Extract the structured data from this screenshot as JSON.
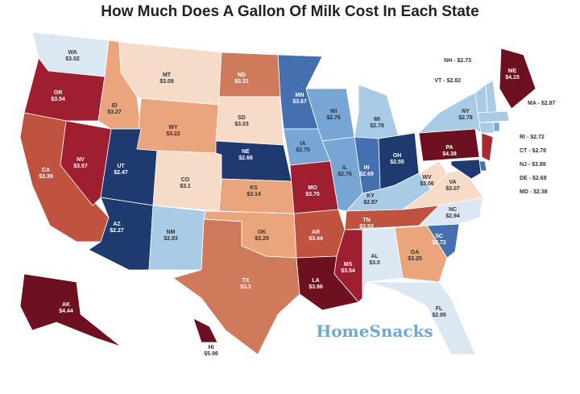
{
  "title": "How Much Does A Gallon Of Milk Cost In Each State",
  "watermark": "HomeSnacks",
  "states": [
    {
      "abbr": "WA",
      "price": "$3.02",
      "color": "#dbe8f3"
    },
    {
      "abbr": "OR",
      "price": "$3.54",
      "color": "#9f1f30"
    },
    {
      "abbr": "CA",
      "price": "$3.39",
      "color": "#c0533f"
    },
    {
      "abbr": "NV",
      "price": "$3.57",
      "color": "#9f1f30"
    },
    {
      "abbr": "ID",
      "price": "$3.27",
      "color": "#eaa57c"
    },
    {
      "abbr": "MT",
      "price": "$3.09",
      "color": "#f6dcc8"
    },
    {
      "abbr": "WY",
      "price": "$3.22",
      "color": "#eaa57c"
    },
    {
      "abbr": "UT",
      "price": "$2.47",
      "color": "#1e3a6e"
    },
    {
      "abbr": "AZ",
      "price": "$2.27",
      "color": "#1e3a6e"
    },
    {
      "abbr": "CO",
      "price": "$3.1",
      "color": "#f6dcc8"
    },
    {
      "abbr": "NM",
      "price": "$2.83",
      "color": "#a9cbe5"
    },
    {
      "abbr": "ND",
      "price": "$3.31",
      "color": "#d07a5c"
    },
    {
      "abbr": "SD",
      "price": "$3.03",
      "color": "#f6dcc8"
    },
    {
      "abbr": "NE",
      "price": "$2.66",
      "color": "#1e3a6e"
    },
    {
      "abbr": "KS",
      "price": "$3.14",
      "color": "#eaa57c"
    },
    {
      "abbr": "OK",
      "price": "$3.29",
      "color": "#eaa57c"
    },
    {
      "abbr": "TX",
      "price": "$3.3",
      "color": "#d07a5c"
    },
    {
      "abbr": "MN",
      "price": "$3.67",
      "color": "#4470b0"
    },
    {
      "abbr": "IA",
      "price": "$2.75",
      "color": "#77a6d4"
    },
    {
      "abbr": "MO",
      "price": "$3.70",
      "color": "#9f1f30"
    },
    {
      "abbr": "AR",
      "price": "$3.44",
      "color": "#c0533f"
    },
    {
      "abbr": "LA",
      "price": "$3.96",
      "color": "#6d1020"
    },
    {
      "abbr": "WI",
      "price": "$2.76",
      "color": "#77a6d4"
    },
    {
      "abbr": "IL",
      "price": "$2.76",
      "color": "#77a6d4"
    },
    {
      "abbr": "MI",
      "price": "$2.78",
      "color": "#a9cbe5"
    },
    {
      "abbr": "IN",
      "price": "$2.69",
      "color": "#4470b0"
    },
    {
      "abbr": "OH",
      "price": "$2.55",
      "color": "#1e3a6e"
    },
    {
      "abbr": "KY",
      "price": "$2.87",
      "color": "#a9cbe5"
    },
    {
      "abbr": "TN",
      "price": "$3.53",
      "color": "#c0533f"
    },
    {
      "abbr": "MS",
      "price": "$3.54",
      "color": "#9f1f30"
    },
    {
      "abbr": "AL",
      "price": "$3.0",
      "color": "#dbe8f3"
    },
    {
      "abbr": "GA",
      "price": "$3.25",
      "color": "#eaa57c"
    },
    {
      "abbr": "FL",
      "price": "$2.95",
      "color": "#dbe8f3"
    },
    {
      "abbr": "SC",
      "price": "$2.72",
      "color": "#4470b0"
    },
    {
      "abbr": "NC",
      "price": "$2.94",
      "color": "#dbe8f3"
    },
    {
      "abbr": "VA",
      "price": "$3.07",
      "color": "#f6dcc8"
    },
    {
      "abbr": "WV",
      "price": "$3.06",
      "color": "#f6dcc8"
    },
    {
      "abbr": "PA",
      "price": "$4.38",
      "color": "#6d1020"
    },
    {
      "abbr": "NY",
      "price": "$2.78",
      "color": "#a9cbe5"
    },
    {
      "abbr": "ME",
      "price": "$4.15",
      "color": "#6d1020"
    },
    {
      "abbr": "AK",
      "price": "$4.44",
      "color": "#6d1020"
    },
    {
      "abbr": "HI",
      "price": "$5.98",
      "color": "#6d1020"
    }
  ],
  "callouts": [
    {
      "text": "NH - $2.73",
      "color": "#a9cbe5"
    },
    {
      "text": "VT - $2.82",
      "color": "#a9cbe5"
    },
    {
      "text": "MA - $2.87",
      "color": "#a9cbe5"
    },
    {
      "text": "RI - $2.72",
      "color": "#77a6d4"
    },
    {
      "text": "CT - $2.78",
      "color": "#a9cbe5"
    },
    {
      "text": "NJ - $3.89",
      "color": "#a82a32"
    },
    {
      "text": "DE - $2.69",
      "color": "#4470b0"
    },
    {
      "text": "MD - $2.38",
      "color": "#1e3a6e"
    }
  ]
}
